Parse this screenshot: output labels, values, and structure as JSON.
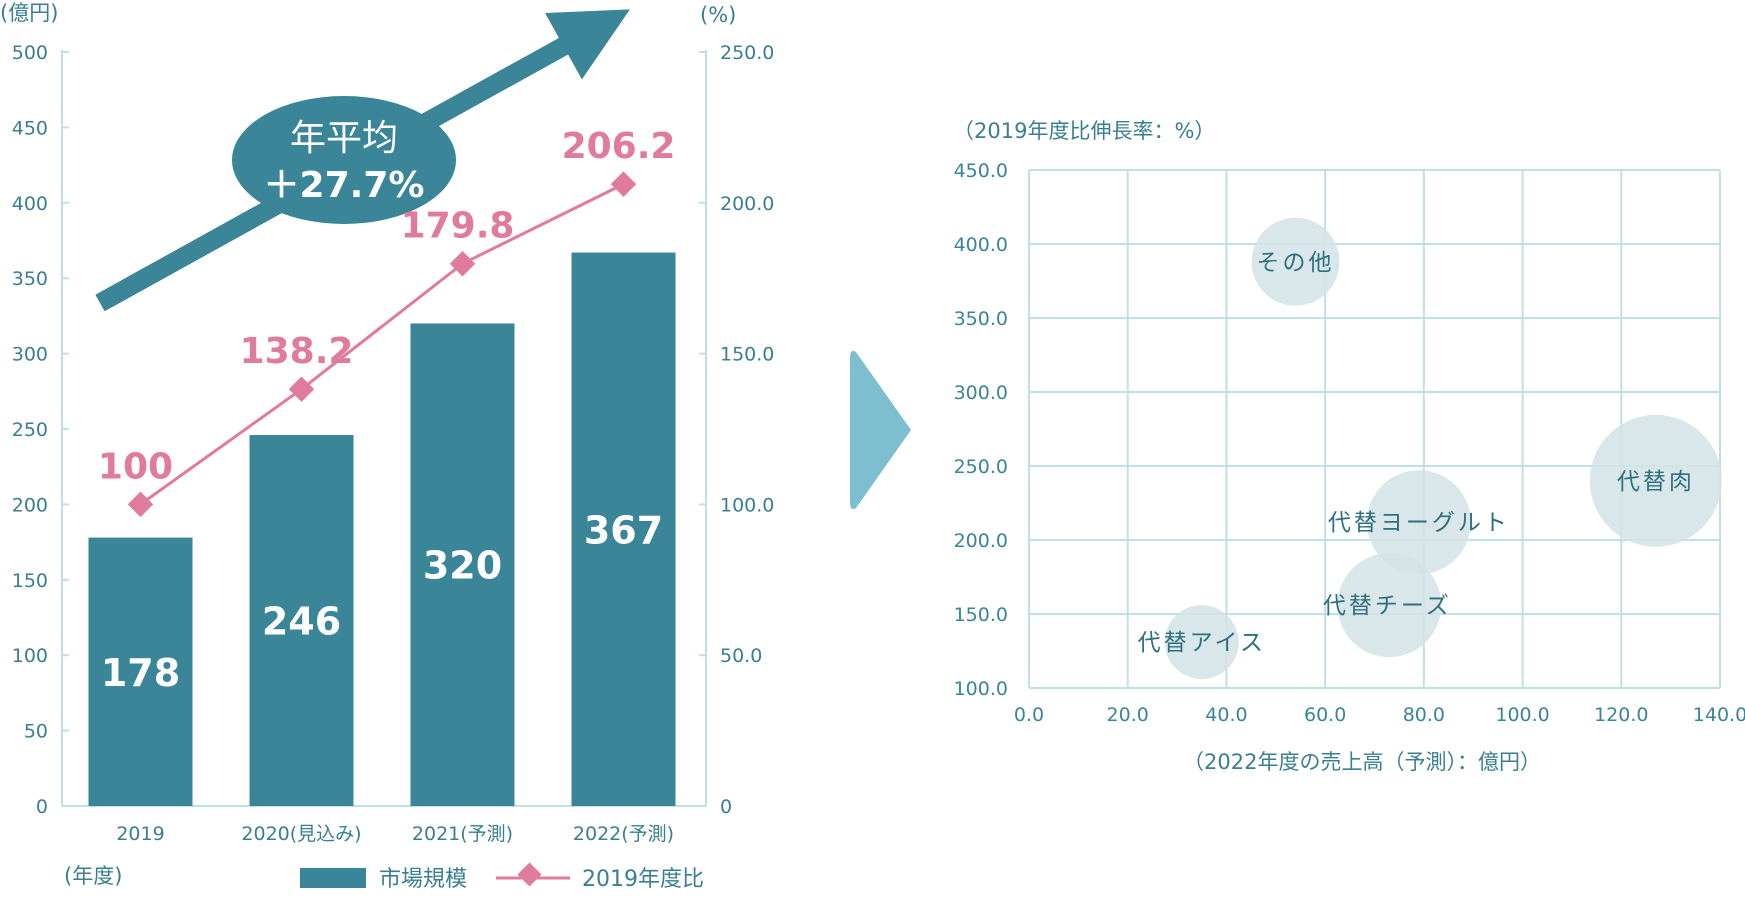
{
  "left_chart": {
    "y_left_unit": "(億円)",
    "y_right_unit": "(%)",
    "x_unit": "(年度)",
    "left_ticks": [
      "500",
      "450",
      "400",
      "350",
      "300",
      "250",
      "200",
      "150",
      "100",
      "50",
      "0"
    ],
    "right_ticks": [
      "250.0",
      "200.0",
      "150.0",
      "100.0",
      "50.0",
      "0"
    ],
    "callout_line1": "年平均",
    "callout_line2": "＋27.7%",
    "legend_bar": "市場規模",
    "legend_line": "2019年度比"
  },
  "right_chart": {
    "y_unit": "（2019年度比伸長率：%）",
    "x_unit": "（2022年度の売上高（予測）：億円）",
    "y_ticks": [
      "450.0",
      "400.0",
      "350.0",
      "300.0",
      "250.0",
      "200.0",
      "150.0",
      "100.0"
    ],
    "x_ticks": [
      "0.0",
      "20.0",
      "40.0",
      "60.0",
      "80.0",
      "100.0",
      "120.0",
      "140.0"
    ]
  },
  "colors": {
    "bar": "#3a8597",
    "line": "#e07b9c",
    "bubble": "#d4e3e6",
    "grid": "#bfe0e6",
    "chevron": "#7dbfcf"
  },
  "chart_data": [
    {
      "type": "bar",
      "categories": [
        "2019",
        "2020(見込み)",
        "2021(予測)",
        "2022(予測)"
      ],
      "series": [
        {
          "name": "市場規模",
          "axis": "left",
          "values": [
            178,
            246,
            320,
            367
          ]
        },
        {
          "name": "2019年度比",
          "axis": "right",
          "kind": "line",
          "values": [
            100,
            138.2,
            179.8,
            206.2
          ]
        }
      ],
      "ylim_left": [
        0,
        500
      ],
      "ylim_right": [
        0,
        250
      ],
      "ylabel": "(億円)",
      "y2label": "(%)",
      "xlabel": "(年度)",
      "legend": "bottom"
    },
    {
      "type": "scatter",
      "points": [
        {
          "label": "その他",
          "x": 54,
          "y": 388
        },
        {
          "label": "代替肉",
          "x": 127,
          "y": 240
        },
        {
          "label": "代替ヨーグルト",
          "x": 79,
          "y": 212
        },
        {
          "label": "代替チーズ",
          "x": 73,
          "y": 156
        },
        {
          "label": "代替アイス",
          "x": 35,
          "y": 131
        }
      ],
      "xlim": [
        0,
        140
      ],
      "ylim": [
        100,
        450
      ],
      "xlabel": "（2022年度の売上高（予測）：億円）",
      "ylabel": "（2019年度比伸長率：%）",
      "grid": true
    }
  ]
}
